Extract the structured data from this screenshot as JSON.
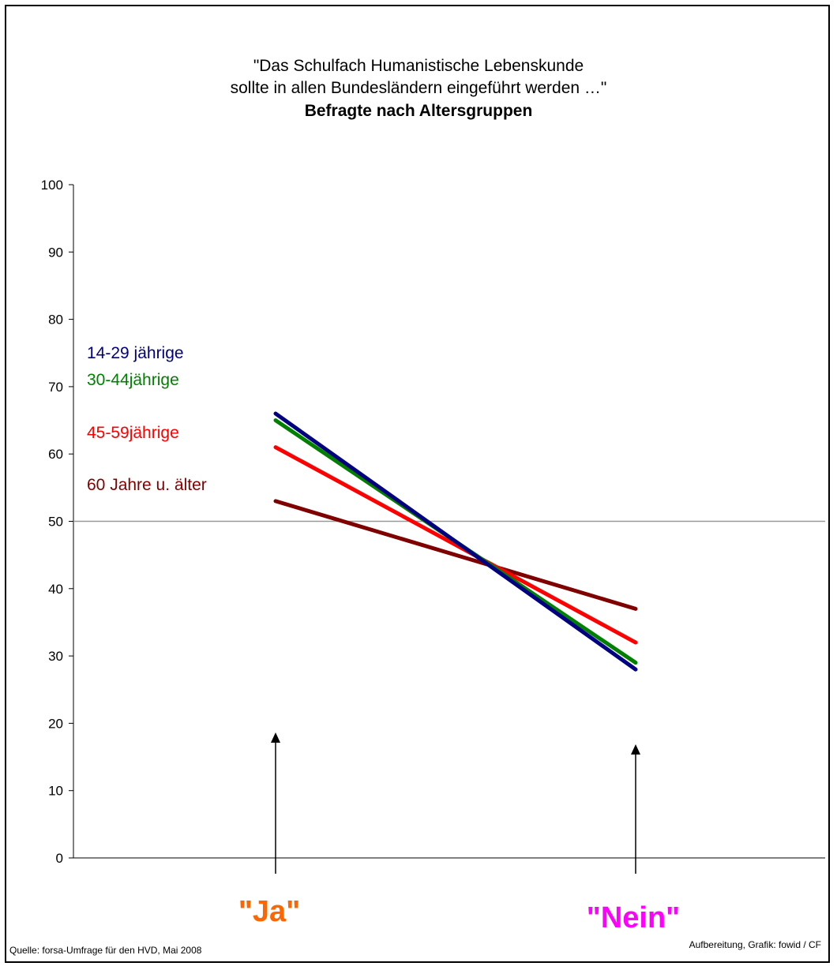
{
  "chart_data": {
    "type": "line",
    "title_line1": "\"Das Schulfach Humanistische Lebenskunde",
    "title_line2": "sollte in allen Bundesländern eingeführt werden …\"",
    "subtitle": "Befragte nach Altersgruppen",
    "x": [
      "\"Ja\"",
      "\"Nein\""
    ],
    "category_colors": [
      "#ff6600",
      "#ff00ff"
    ],
    "ylim": [
      0,
      100
    ],
    "yticks": [
      0,
      10,
      20,
      30,
      40,
      50,
      60,
      70,
      80,
      90,
      100
    ],
    "reference_line": 50,
    "grid": false,
    "legend": "inline-left",
    "series": [
      {
        "name": "14-29 jährige",
        "values": [
          66,
          28
        ],
        "color": "#000080"
      },
      {
        "name": "30-44jährige",
        "values": [
          65,
          29
        ],
        "color": "#008000"
      },
      {
        "name": "45-59jährige",
        "values": [
          61,
          32
        ],
        "color": "#ff0000"
      },
      {
        "name": "60 Jahre u. älter",
        "values": [
          53,
          37
        ],
        "color": "#800000"
      }
    ]
  },
  "footer": {
    "source": "Quelle: forsa-Umfrage für den HVD, Mai 2008",
    "credit": "Aufbereitung, Grafik: fowid / CF"
  }
}
